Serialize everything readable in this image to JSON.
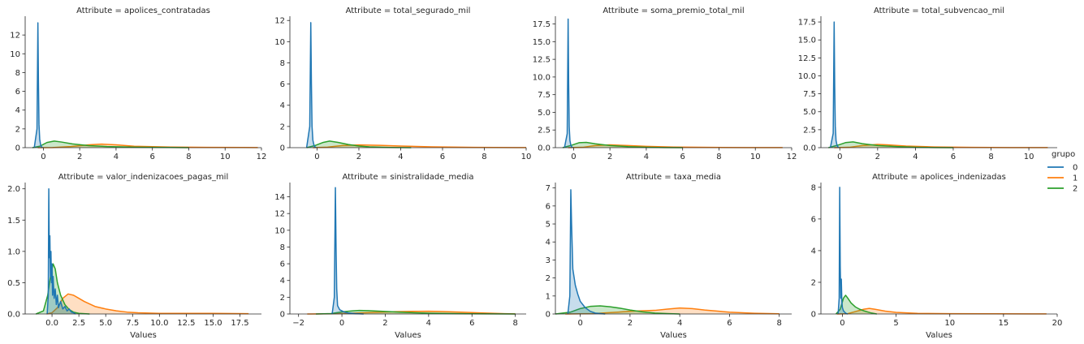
{
  "chart_data": {
    "type": "area",
    "legend": {
      "title": "grupo",
      "placement": "right",
      "entries": [
        "0",
        "1",
        "2"
      ]
    },
    "colors": {
      "0": "#1f77b4",
      "1": "#ff7f0e",
      "2": "#2ca02c"
    },
    "xlabel": "Values",
    "panels": [
      {
        "title": "Attribute = apolices_contratadas",
        "xlim": [
          -1.0,
          12.0
        ],
        "ylim": [
          0,
          14.0
        ],
        "xticks": [
          0,
          2,
          4,
          6,
          8,
          10,
          12
        ],
        "yticks": [
          0,
          2,
          4,
          6,
          8,
          10,
          12
        ],
        "series": [
          {
            "name": "0",
            "x": [
              -0.5,
              -0.35,
              -0.3,
              -0.27,
              -0.24,
              -0.2,
              -0.15,
              -0.1,
              -0.05
            ],
            "y": [
              0,
              2.0,
              13.3,
              7.0,
              2.5,
              0.9,
              0.3,
              0.1,
              0
            ]
          },
          {
            "name": "1",
            "x": [
              -0.3,
              0.5,
              1.5,
              2.5,
              3.2,
              4.0,
              5.0,
              7.0,
              9.0,
              11.0,
              11.8
            ],
            "y": [
              0,
              0.01,
              0.12,
              0.3,
              0.38,
              0.3,
              0.15,
              0.06,
              0.03,
              0.02,
              0.01
            ]
          },
          {
            "name": "2",
            "x": [
              -0.6,
              -0.2,
              0.2,
              0.6,
              1.0,
              1.6,
              2.5,
              3.5,
              5.0,
              7.0,
              8.0
            ],
            "y": [
              0,
              0.15,
              0.55,
              0.7,
              0.6,
              0.4,
              0.22,
              0.12,
              0.05,
              0.02,
              0
            ]
          }
        ]
      },
      {
        "title": "Attribute = total_segurado_mil",
        "xlim": [
          -1.3,
          10.0
        ],
        "ylim": [
          0,
          12.4
        ],
        "xticks": [
          0,
          2,
          4,
          6,
          8,
          10
        ],
        "yticks": [
          0,
          2,
          4,
          6,
          8,
          10,
          12
        ],
        "series": [
          {
            "name": "0",
            "x": [
              -0.5,
              -0.35,
              -0.3,
              -0.27,
              -0.24,
              -0.2,
              -0.15,
              -0.1,
              -0.05
            ],
            "y": [
              0,
              2.0,
              11.8,
              6.0,
              2.0,
              0.7,
              0.25,
              0.08,
              0
            ]
          },
          {
            "name": "1",
            "x": [
              -0.2,
              0.5,
              1.2,
              2.0,
              3.0,
              4.0,
              5.5,
              7.5,
              9.5,
              10.0
            ],
            "y": [
              0,
              0.05,
              0.2,
              0.26,
              0.22,
              0.15,
              0.08,
              0.03,
              0.01,
              0.01
            ]
          },
          {
            "name": "2",
            "x": [
              -0.5,
              -0.1,
              0.3,
              0.6,
              1.0,
              1.5,
              2.0,
              2.5,
              3.5,
              4.5
            ],
            "y": [
              0,
              0.2,
              0.5,
              0.62,
              0.5,
              0.3,
              0.15,
              0.08,
              0.02,
              0
            ]
          }
        ]
      },
      {
        "title": "Attribute = soma_premio_total_mil",
        "xlim": [
          -1.0,
          12.0
        ],
        "ylim": [
          0,
          18.6
        ],
        "xticks": [
          0,
          2,
          4,
          6,
          8,
          10,
          12
        ],
        "yticks": [
          0,
          2.5,
          5.0,
          7.5,
          10.0,
          12.5,
          15.0,
          17.5
        ],
        "series": [
          {
            "name": "0",
            "x": [
              -0.5,
              -0.35,
              -0.3,
              -0.27,
              -0.24,
              -0.2,
              -0.15,
              -0.1,
              -0.05
            ],
            "y": [
              0,
              2.0,
              18.2,
              9.0,
              3.0,
              1.0,
              0.35,
              0.1,
              0
            ]
          },
          {
            "name": "1",
            "x": [
              -0.3,
              0.5,
              1.2,
              2.0,
              3.0,
              4.0,
              5.5,
              7.5,
              9.5,
              11.5
            ],
            "y": [
              0,
              0.05,
              0.3,
              0.4,
              0.3,
              0.18,
              0.08,
              0.04,
              0.02,
              0.01
            ]
          },
          {
            "name": "2",
            "x": [
              -0.6,
              -0.1,
              0.3,
              0.7,
              1.2,
              2.0,
              3.0,
              4.0,
              5.0,
              6.0
            ],
            "y": [
              0,
              0.35,
              0.7,
              0.75,
              0.55,
              0.3,
              0.15,
              0.06,
              0.02,
              0
            ]
          }
        ]
      },
      {
        "title": "Attribute = total_subvencao_mil",
        "xlim": [
          -1.0,
          11.5
        ],
        "ylim": [
          0,
          18.3
        ],
        "xticks": [
          0,
          2,
          4,
          6,
          8,
          10
        ],
        "yticks": [
          0,
          2.5,
          5.0,
          7.5,
          10.0,
          12.5,
          15.0,
          17.5
        ],
        "series": [
          {
            "name": "0",
            "x": [
              -0.5,
              -0.35,
              -0.3,
              -0.27,
              -0.24,
              -0.2,
              -0.15,
              -0.1,
              -0.05
            ],
            "y": [
              0,
              2.0,
              17.5,
              8.5,
              3.0,
              1.0,
              0.35,
              0.1,
              0
            ]
          },
          {
            "name": "1",
            "x": [
              -0.3,
              0.5,
              1.2,
              2.0,
              2.5,
              3.5,
              5.0,
              7.0,
              9.0,
              11.0
            ],
            "y": [
              0,
              0.05,
              0.3,
              0.45,
              0.4,
              0.22,
              0.1,
              0.04,
              0.02,
              0.01
            ]
          },
          {
            "name": "2",
            "x": [
              -0.6,
              -0.1,
              0.3,
              0.7,
              1.2,
              2.0,
              3.0,
              4.0,
              5.0,
              6.0
            ],
            "y": [
              0,
              0.35,
              0.7,
              0.8,
              0.55,
              0.3,
              0.15,
              0.06,
              0.02,
              0
            ]
          }
        ]
      },
      {
        "title": "Attribute = valor_indenizacoes_pagas_mil",
        "xlim": [
          -2.5,
          19.5
        ],
        "ylim": [
          0,
          2.1
        ],
        "xticks": [
          0.0,
          2.5,
          5.0,
          7.5,
          10.0,
          12.5,
          15.0,
          17.5
        ],
        "yticks": [
          0.0,
          0.5,
          1.0,
          1.5,
          2.0
        ],
        "series": [
          {
            "name": "0",
            "x": [
              -0.45,
              -0.35,
              -0.3,
              -0.25,
              -0.2,
              -0.15,
              -0.1,
              -0.05,
              0.0,
              0.05,
              0.1,
              0.2,
              0.3,
              0.4,
              0.5,
              0.6,
              0.8,
              1.0,
              1.2,
              1.4,
              1.6,
              1.8,
              2.0,
              2.2
            ],
            "y": [
              0,
              0.3,
              2.0,
              0.9,
              1.25,
              0.6,
              1.0,
              0.5,
              0.8,
              0.3,
              0.6,
              0.25,
              0.4,
              0.15,
              0.3,
              0.1,
              0.2,
              0.08,
              0.12,
              0.05,
              0.08,
              0.03,
              0.02,
              0
            ]
          },
          {
            "name": "1",
            "x": [
              -0.5,
              0.0,
              0.5,
              1.0,
              1.5,
              2.0,
              2.5,
              3.0,
              4.0,
              5.0,
              6.0,
              7.0,
              8.0,
              10.0,
              12.0,
              15.0,
              18.3
            ],
            "y": [
              0,
              0.02,
              0.1,
              0.25,
              0.32,
              0.3,
              0.25,
              0.2,
              0.12,
              0.08,
              0.05,
              0.03,
              0.02,
              0.01,
              0.01,
              0.01,
              0.005
            ]
          },
          {
            "name": "2",
            "x": [
              -1.5,
              -0.8,
              -0.4,
              -0.1,
              0.1,
              0.3,
              0.5,
              0.8,
              1.2,
              1.6,
              2.0,
              2.5,
              3.0,
              3.5
            ],
            "y": [
              0,
              0.05,
              0.3,
              0.65,
              0.8,
              0.72,
              0.5,
              0.3,
              0.15,
              0.07,
              0.03,
              0.01,
              0.005,
              0
            ]
          }
        ]
      },
      {
        "title": "Attribute = sinistralidade_media",
        "xlim": [
          -2.4,
          8.5
        ],
        "ylim": [
          0,
          15.7
        ],
        "xticks": [
          -2,
          0,
          2,
          4,
          6,
          8
        ],
        "yticks": [
          0,
          2,
          4,
          6,
          8,
          10,
          12,
          14
        ],
        "series": [
          {
            "name": "0",
            "x": [
              -0.45,
              -0.35,
              -0.3,
              -0.27,
              -0.24,
              -0.2,
              -0.1,
              0.1,
              0.3,
              0.6,
              1.0
            ],
            "y": [
              0,
              2.0,
              15.1,
              8.0,
              3.0,
              1.0,
              0.5,
              0.25,
              0.12,
              0.05,
              0
            ]
          },
          {
            "name": "1",
            "x": [
              -1.6,
              -0.5,
              0.5,
              1.5,
              2.5,
              3.5,
              4.0,
              4.5,
              5.5,
              6.5,
              7.5,
              8.0
            ],
            "y": [
              0,
              0.02,
              0.1,
              0.2,
              0.28,
              0.32,
              0.33,
              0.3,
              0.22,
              0.12,
              0.04,
              0.01
            ]
          },
          {
            "name": "2",
            "x": [
              -1.2,
              -0.5,
              0.0,
              0.5,
              0.8,
              1.2,
              2.0,
              3.0,
              4.0,
              5.0,
              6.0,
              7.0,
              8.0
            ],
            "y": [
              0,
              0.05,
              0.25,
              0.38,
              0.42,
              0.4,
              0.3,
              0.18,
              0.1,
              0.06,
              0.03,
              0.01,
              0
            ]
          }
        ]
      },
      {
        "title": "Attribute = taxa_media",
        "xlim": [
          -1.0,
          8.5
        ],
        "ylim": [
          0,
          7.3
        ],
        "xticks": [
          0,
          2,
          4,
          6,
          8
        ],
        "yticks": [
          0,
          1,
          2,
          3,
          4,
          5,
          6,
          7
        ],
        "series": [
          {
            "name": "0",
            "x": [
              -0.5,
              -0.42,
              -0.38,
              -0.35,
              -0.3,
              -0.2,
              -0.1,
              0.0,
              0.2,
              0.4,
              0.6,
              1.0
            ],
            "y": [
              0,
              1.0,
              6.9,
              5.0,
              2.5,
              1.6,
              1.1,
              0.7,
              0.35,
              0.15,
              0.05,
              0
            ]
          },
          {
            "name": "1",
            "x": [
              -0.6,
              0.5,
              1.5,
              2.0,
              3.0,
              3.5,
              4.0,
              4.5,
              5.0,
              6.0,
              7.0,
              8.0
            ],
            "y": [
              0,
              0.02,
              0.1,
              0.15,
              0.2,
              0.27,
              0.33,
              0.3,
              0.22,
              0.1,
              0.04,
              0.01
            ]
          },
          {
            "name": "2",
            "x": [
              -1.0,
              -0.4,
              0.0,
              0.4,
              0.8,
              1.2,
              1.6,
              2.0,
              2.5,
              3.0,
              3.5,
              4.0
            ],
            "y": [
              0,
              0.1,
              0.3,
              0.42,
              0.45,
              0.4,
              0.32,
              0.22,
              0.12,
              0.05,
              0.02,
              0
            ]
          }
        ]
      },
      {
        "title": "Attribute = apolices_indenizadas",
        "xlim": [
          -2.0,
          20.0
        ],
        "ylim": [
          0,
          8.3
        ],
        "xticks": [
          0,
          5,
          10,
          15,
          20
        ],
        "yticks": [
          0,
          2,
          4,
          6,
          8
        ],
        "series": [
          {
            "name": "0",
            "x": [
              -0.4,
              -0.3,
              -0.25,
              -0.2,
              -0.15,
              -0.1,
              -0.05,
              0.0,
              0.1,
              0.3,
              0.5
            ],
            "y": [
              0,
              1.0,
              8.0,
              3.0,
              1.0,
              2.2,
              0.8,
              0.4,
              0.2,
              0.05,
              0
            ]
          },
          {
            "name": "1",
            "x": [
              -0.5,
              0.5,
              1.2,
              2.0,
              2.5,
              3.0,
              4.0,
              5.0,
              7.0,
              10.0,
              14.0,
              19.0
            ],
            "y": [
              0,
              0.02,
              0.15,
              0.3,
              0.35,
              0.3,
              0.18,
              0.1,
              0.04,
              0.02,
              0.01,
              0.005
            ]
          },
          {
            "name": "2",
            "x": [
              -0.6,
              -0.2,
              0.1,
              0.3,
              0.5,
              0.8,
              1.2,
              1.6,
              2.0,
              2.6,
              3.2
            ],
            "y": [
              0,
              0.3,
              1.0,
              1.18,
              1.0,
              0.7,
              0.45,
              0.3,
              0.2,
              0.08,
              0
            ]
          }
        ]
      }
    ]
  }
}
